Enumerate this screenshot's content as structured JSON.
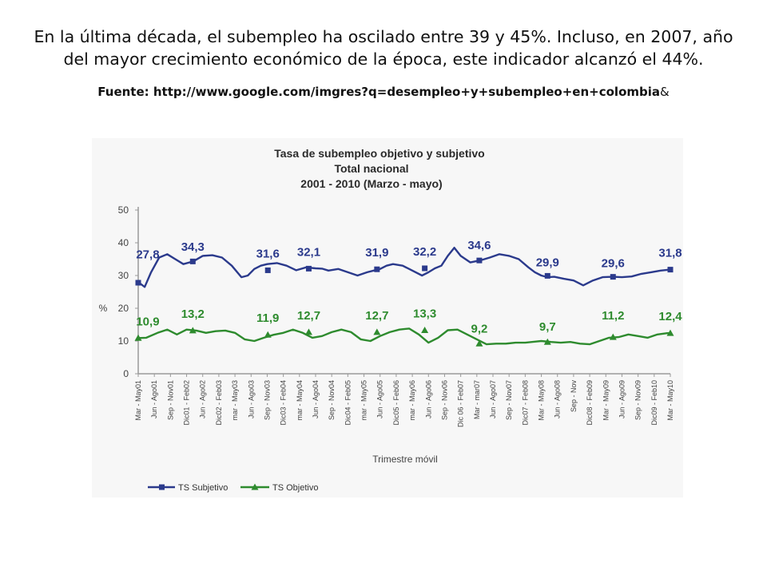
{
  "slide": {
    "intro_line1": "En la última década, el subempleo ha oscilado entre 39 y 45%. Incluso, en 2007, año",
    "intro_line2": "del mayor crecimiento económico de la época, este indicador alcanzó el 44%.",
    "source_bold": "Fuente: http://www.google.com/imgres?q=desempleo+y+subempleo+en+colombia",
    "source_tail": "&"
  },
  "chart_data": {
    "type": "line",
    "title": [
      "Tasa  de subempleo objetivo y subjetivo",
      "Total nacional",
      "2001 - 2010 (Marzo - mayo)"
    ],
    "xlabel": "Trimestre móvil",
    "ylabel": "%",
    "ylim": [
      0,
      50
    ],
    "yticks": [
      0,
      10,
      20,
      30,
      40,
      50
    ],
    "grid": false,
    "legend_position": "bottom-left",
    "categories": [
      "Mar - May01",
      "Jun - Ago01",
      "Sep - Nov01",
      "Dic01 - Feb02",
      "Jun - Ago02",
      "Dic02 - Feb03",
      "mar - May03",
      "Jun - Ago03",
      "Sep - Nov03",
      "Dic03 - Feb04",
      "mar - May04",
      "Jun - Ago04",
      "Sep - Nov04",
      "Dic04 - Feb05",
      "mar - May05",
      "Jun - Ago05",
      "Dic05 - Feb06",
      "mar - May06",
      "Jun - Ago06",
      "Sep - Nov06",
      "Dic 06 - Feb07",
      "Mar - mar07",
      "Jun - Ago07",
      "Sep - Nov07",
      "Dic07 - Feb08",
      "Mar - May08",
      "Jun - Ago08",
      "Sep - Nov",
      "Dic08 - Feb09",
      "Mar - May09",
      "Jun - Ago09",
      "Sep - Nov09",
      "Dic09 - Feb10",
      "Mar - May10"
    ],
    "series": [
      {
        "name": "TS Subjetivo",
        "color": "#2b3a8c",
        "marker": "square",
        "x": [
          0,
          0.4,
          0.8,
          1.3,
          1.8,
          2.3,
          2.8,
          3.4,
          4,
          4.6,
          5.2,
          5.8,
          6.4,
          6.8,
          7.2,
          7.6,
          8,
          8.6,
          9.2,
          9.8,
          10.4,
          11,
          11.4,
          11.8,
          12.4,
          13,
          13.6,
          14.2,
          14.6,
          15,
          15.4,
          15.8,
          16.4,
          17,
          17.6,
          18,
          18.4,
          18.8,
          19.2,
          19.6,
          20,
          20.6,
          21.2,
          21.8,
          22.4,
          23,
          23.6,
          24.2,
          24.6,
          25,
          25.4,
          25.8,
          26.4,
          27,
          27.6,
          28.2,
          28.8,
          29.4,
          30,
          30.6,
          31.2,
          31.8,
          32.4,
          33
        ],
        "values": [
          28,
          26.5,
          31,
          35.5,
          36.5,
          35,
          33.5,
          34.3,
          36,
          36.2,
          35.5,
          33,
          29.5,
          30,
          32,
          33,
          33.5,
          33.8,
          33,
          31.6,
          32.5,
          32.2,
          32.1,
          31.5,
          32,
          31,
          30,
          31,
          31.5,
          32,
          33,
          33.5,
          33,
          31.5,
          30,
          31,
          32.2,
          33,
          36,
          38.5,
          36,
          34,
          34.6,
          35.5,
          36.5,
          36,
          35,
          32.5,
          31,
          30,
          29.5,
          29.6,
          29,
          28.5,
          27,
          28.5,
          29.5,
          29.6,
          29.5,
          29.7,
          30.5,
          31,
          31.5,
          31.8
        ]
      },
      {
        "name": "TS Objetivo",
        "color": "#2e8b2e",
        "marker": "triangle",
        "x": [
          0,
          0.5,
          1.2,
          1.8,
          2.4,
          3,
          3.6,
          4.2,
          4.8,
          5.4,
          6,
          6.6,
          7.2,
          7.8,
          8.4,
          9,
          9.6,
          10.2,
          10.8,
          11.4,
          12,
          12.6,
          13.2,
          13.8,
          14.4,
          15,
          15.6,
          16.2,
          16.8,
          17.4,
          18,
          18.6,
          19.2,
          19.8,
          20.4,
          21,
          21.6,
          22.2,
          22.8,
          23.4,
          24,
          24.6,
          25,
          25.6,
          26.2,
          26.8,
          27.4,
          28,
          28.6,
          29.2,
          29.8,
          30.4,
          31,
          31.6,
          32.2,
          32.8,
          33
        ],
        "values": [
          10.9,
          11,
          12.5,
          13.5,
          12,
          13.5,
          13.2,
          12.5,
          13,
          13.2,
          12.5,
          10.5,
          10,
          11,
          11.9,
          12.5,
          13.5,
          12.5,
          11,
          11.5,
          12.7,
          13.5,
          12.7,
          10.5,
          10,
          11.5,
          12.7,
          13.5,
          13.8,
          12,
          9.5,
          11,
          13.3,
          13.5,
          12,
          10.5,
          9,
          9.2,
          9.2,
          9.5,
          9.5,
          9.8,
          10,
          9.7,
          9.5,
          9.7,
          9.2,
          9,
          10,
          11,
          11.2,
          12,
          11.5,
          11,
          12,
          12.4,
          12.4
        ]
      }
    ],
    "value_labels": [
      {
        "series": 0,
        "x": 0.7,
        "value": 27.8,
        "text": "27,8"
      },
      {
        "series": 0,
        "x": 4.0,
        "value": 34.3,
        "text": "34,3"
      },
      {
        "series": 0,
        "x": 9.5,
        "value": 31.6,
        "text": "31,6"
      },
      {
        "series": 0,
        "x": 12.5,
        "value": 32.1,
        "text": "32,1"
      },
      {
        "series": 0,
        "x": 17.5,
        "value": 31.9,
        "text": "31,9"
      },
      {
        "series": 0,
        "x": 21.0,
        "value": 32.2,
        "text": "32,2"
      },
      {
        "series": 0,
        "x": 25.0,
        "value": 34.6,
        "text": "34,6"
      },
      {
        "series": 0,
        "x": 30.0,
        "value": 29.9,
        "text": "29,9"
      },
      {
        "series": 0,
        "x": 34.8,
        "value": 29.6,
        "text": "29,6"
      },
      {
        "series": 0,
        "x": 39.0,
        "value": 31.8,
        "text": "31,8"
      },
      {
        "series": 1,
        "x": 0.7,
        "value": 10.9,
        "text": "10,9"
      },
      {
        "series": 1,
        "x": 4.0,
        "value": 13.2,
        "text": "13,2"
      },
      {
        "series": 1,
        "x": 9.5,
        "value": 11.9,
        "text": "11,9"
      },
      {
        "series": 1,
        "x": 12.5,
        "value": 12.7,
        "text": "12,7"
      },
      {
        "series": 1,
        "x": 17.5,
        "value": 12.7,
        "text": "12,7"
      },
      {
        "series": 1,
        "x": 21.0,
        "value": 13.3,
        "text": "13,3"
      },
      {
        "series": 1,
        "x": 25.0,
        "value": 9.2,
        "text": "9,2"
      },
      {
        "series": 1,
        "x": 30.0,
        "value": 9.7,
        "text": "9,7"
      },
      {
        "series": 1,
        "x": 34.8,
        "value": 11.2,
        "text": "11,2"
      },
      {
        "series": 1,
        "x": 39.0,
        "value": 12.4,
        "text": "12,4"
      }
    ],
    "markers": [
      {
        "series": 0,
        "x": [
          0,
          4,
          9,
          12,
          17,
          21,
          25,
          29,
          32,
          36,
          39
        ]
      },
      {
        "series": 1,
        "x": [
          0,
          4,
          9,
          12,
          17,
          21,
          25,
          29,
          32,
          36,
          39
        ]
      }
    ]
  }
}
